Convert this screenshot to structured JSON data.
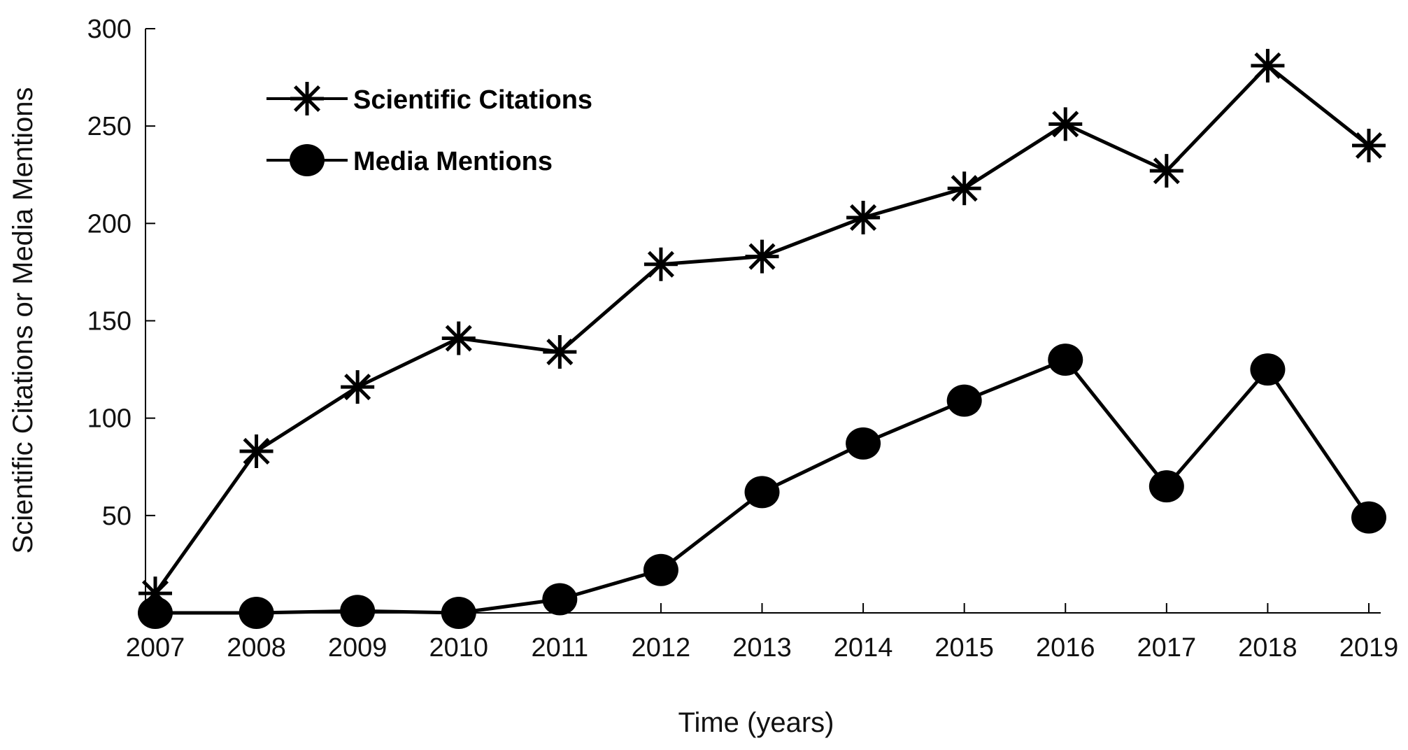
{
  "chart_data": {
    "type": "line",
    "title": "",
    "xlabel": "Time (years)",
    "ylabel": "Scientific Citations or Media Mentions",
    "x": [
      2007,
      2008,
      2009,
      2010,
      2011,
      2012,
      2013,
      2014,
      2015,
      2016,
      2017,
      2018,
      2019
    ],
    "xticks": [
      "2007",
      "2008",
      "2009",
      "2010",
      "2011",
      "2012",
      "2013",
      "2014",
      "2015",
      "2016",
      "2017",
      "2018",
      "2019"
    ],
    "yticks": [
      "50",
      "100",
      "150",
      "200",
      "250",
      "300"
    ],
    "ylim": [
      0,
      300
    ],
    "grid": false,
    "legend_position": "top-left",
    "series": [
      {
        "name": "Scientific Citations",
        "marker": "asterisk",
        "color": "#000000",
        "values": [
          10,
          83,
          116,
          141,
          134,
          179,
          183,
          203,
          218,
          251,
          227,
          281,
          240
        ]
      },
      {
        "name": "Media Mentions",
        "marker": "filled-circle",
        "color": "#000000",
        "values": [
          0,
          0,
          1,
          0,
          7,
          22,
          62,
          87,
          109,
          130,
          65,
          125,
          49
        ]
      }
    ]
  }
}
